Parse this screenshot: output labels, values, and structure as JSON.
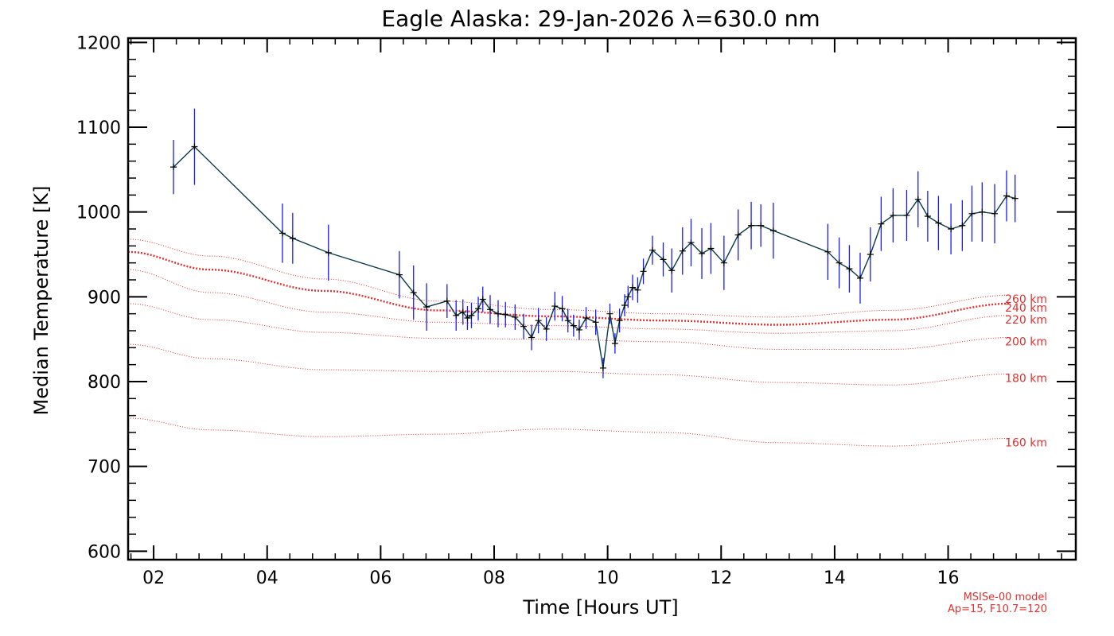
{
  "chart_data": {
    "type": "line",
    "title": "Eagle Alaska: 29-Jan-2026 λ=630.0 nm",
    "xlabel": "Time [Hours UT]",
    "ylabel": "Median Temperature [K]",
    "xlim": [
      1.55,
      18.25
    ],
    "ylim": [
      590,
      1205
    ],
    "x_ticks": [
      2,
      4,
      6,
      8,
      10,
      12,
      14,
      16
    ],
    "x_tick_labels": [
      "02",
      "04",
      "06",
      "08",
      "10",
      "12",
      "14",
      "16"
    ],
    "y_ticks": [
      600,
      700,
      800,
      900,
      1000,
      1100,
      1200
    ],
    "y_tick_labels": [
      "600",
      "700",
      "800",
      "900",
      "1000",
      "1100",
      "1200"
    ],
    "grid": false,
    "colors": {
      "line": "#0a3a4a",
      "marker": "#000000",
      "errorbar": "#1a1aff",
      "model": "#e03030",
      "text": "#000000"
    },
    "series": [
      {
        "x": [
          2.35,
          2.72,
          4.27,
          4.45,
          5.08,
          6.33,
          6.58,
          6.81,
          7.17,
          7.33,
          7.45,
          7.53,
          7.6,
          7.72,
          7.8,
          7.93,
          8.07,
          8.2,
          8.37,
          8.52,
          8.66,
          8.78,
          8.92,
          9.07,
          9.2,
          9.3,
          9.4,
          9.5,
          9.62,
          9.79,
          9.92,
          10.04,
          10.13,
          10.21,
          10.3,
          10.36,
          10.44,
          10.53,
          10.63,
          10.79,
          10.98,
          11.13,
          11.32,
          11.47,
          11.66,
          11.82,
          12.05,
          12.3,
          12.53,
          12.7,
          12.92,
          13.88,
          14.08,
          14.26,
          14.45,
          14.63,
          14.82,
          15.03,
          15.27,
          15.47,
          15.64,
          15.83,
          16.05,
          16.25,
          16.42,
          16.6,
          16.82,
          17.03,
          17.18
        ],
        "y": [
          1053,
          1077,
          975,
          969,
          952,
          926,
          905,
          888,
          895,
          878,
          882,
          875,
          878,
          886,
          897,
          885,
          880,
          879,
          876,
          865,
          852,
          872,
          862,
          889,
          886,
          872,
          866,
          861,
          875,
          870,
          816,
          880,
          845,
          872,
          890,
          900,
          911,
          908,
          930,
          955,
          944,
          931,
          954,
          964,
          951,
          957,
          940,
          973,
          984,
          984,
          978,
          953,
          940,
          933,
          922,
          950,
          986,
          996,
          996,
          1015,
          995,
          987,
          980,
          984,
          998,
          1000,
          998,
          1019,
          1016
        ],
        "err": [
          32,
          45,
          35,
          30,
          33,
          28,
          32,
          28,
          20,
          18,
          15,
          14,
          15,
          14,
          15,
          17,
          16,
          15,
          15,
          15,
          15,
          15,
          14,
          17,
          15,
          14,
          13,
          12,
          13,
          15,
          12,
          12,
          12,
          14,
          13,
          13,
          15,
          15,
          15,
          17,
          20,
          26,
          28,
          28,
          30,
          30,
          32,
          30,
          28,
          25,
          33,
          33,
          30,
          28,
          30,
          32,
          32,
          32,
          30,
          33,
          30,
          32,
          30,
          30,
          33,
          35,
          35,
          30,
          28
        ]
      }
    ],
    "model_curves": [
      {
        "label": "160 km",
        "x": [
          1.55,
          3,
          5,
          7,
          9,
          11,
          13,
          15,
          17.1
        ],
        "y": [
          757,
          743,
          735,
          738,
          744,
          740,
          728,
          724,
          733
        ]
      },
      {
        "label": "180 km",
        "x": [
          1.55,
          3,
          5,
          7,
          9,
          11,
          13,
          15,
          17.1
        ],
        "y": [
          844,
          827,
          814,
          812,
          812,
          808,
          799,
          796,
          809
        ]
      },
      {
        "label": "200 km",
        "x": [
          1.55,
          3,
          5,
          7,
          9,
          11,
          13,
          15,
          17.1
        ],
        "y": [
          892,
          873,
          858,
          851,
          850,
          847,
          838,
          838,
          852
        ]
      },
      {
        "label": "220 km",
        "x": [
          1.55,
          3,
          5,
          7,
          9,
          11,
          13,
          15,
          17.1
        ],
        "y": [
          932,
          905,
          882,
          870,
          866,
          862,
          857,
          860,
          878
        ]
      },
      {
        "label": "240 km",
        "x": [
          1.55,
          3,
          5,
          7,
          9,
          11,
          13,
          15,
          17.1
        ],
        "y": [
          953,
          932,
          907,
          884,
          877,
          872,
          867,
          873,
          892
        ]
      },
      {
        "label": "260 km",
        "x": [
          1.55,
          3,
          5,
          7,
          9,
          11,
          13,
          15,
          17.1
        ],
        "y": [
          968,
          948,
          921,
          895,
          885,
          880,
          876,
          884,
          902
        ]
      }
    ],
    "model_note": [
      "MSISe-00 model",
      "Ap=15, F10.7=120"
    ]
  }
}
